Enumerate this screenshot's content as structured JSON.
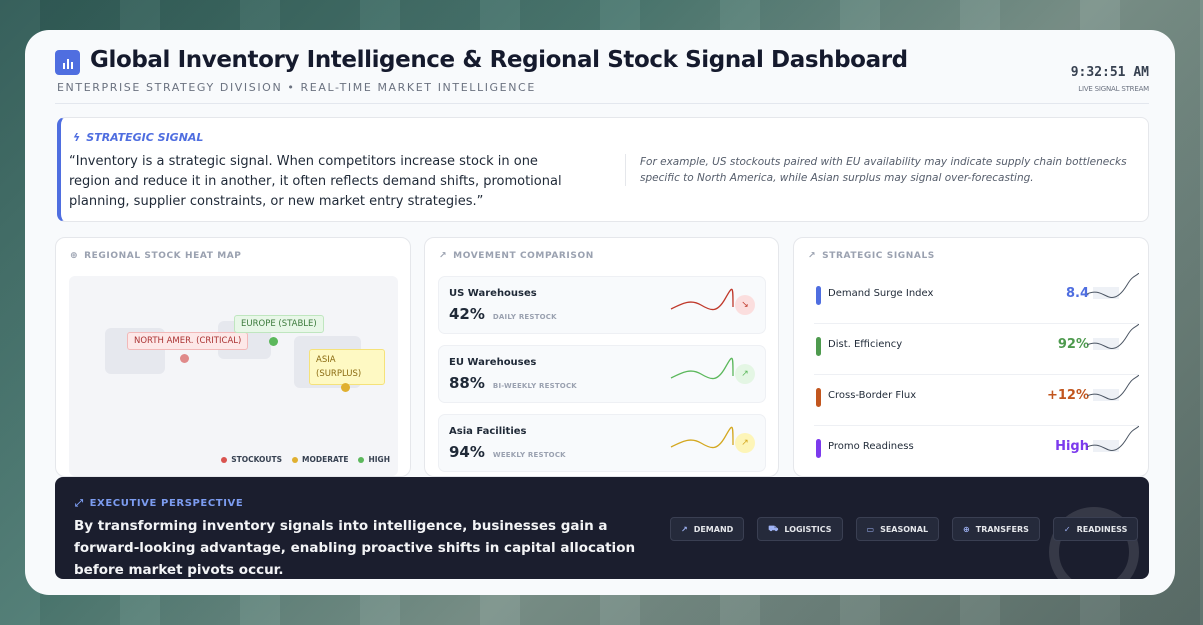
{
  "header": {
    "title": "Global Inventory Intelligence & Regional Stock Signal Dashboard",
    "subtitle": "ENTERPRISE STRATEGY DIVISION • REAL-TIME MARKET INTELLIGENCE",
    "clock": "9:32:51 AM",
    "live_label": "LIVE SIGNAL STREAM",
    "accent": "#4f6ee0"
  },
  "signal": {
    "heading": "STRATEGIC SIGNAL",
    "quote": "“Inventory is a strategic signal. When competitors increase stock in one region and reduce it in another, it often reflects demand shifts, promotional planning, supplier constraints, or new market entry strategies.”",
    "example": "For example, US stockouts paired with EU availability may indicate supply chain bottlenecks specific to North America, while Asian surplus may signal over-forecasting."
  },
  "heatmap": {
    "title": "REGIONAL STOCK HEAT MAP",
    "regions": [
      {
        "label": "NORTH AMER. (CRITICAL)",
        "status": "stockouts"
      },
      {
        "label": "EUROPE (STABLE)",
        "status": "high"
      },
      {
        "label": "ASIA (SURPLUS)",
        "status": "moderate"
      }
    ],
    "legend": [
      "STOCKOUTS",
      "MODERATE",
      "HIGH"
    ],
    "colors": {
      "stockouts": "#d9534f",
      "moderate": "#e0b030",
      "high": "#5cb85c"
    }
  },
  "movement": {
    "title": "MOVEMENT COMPARISON",
    "rows": [
      {
        "name": "US Warehouses",
        "value": "42%",
        "cadence": "DAILY RESTOCK",
        "trend": "down",
        "color": "#c0392b"
      },
      {
        "name": "EU Warehouses",
        "value": "88%",
        "cadence": "BI-WEEKLY RESTOCK",
        "trend": "up",
        "color": "#5cb85c"
      },
      {
        "name": "Asia Facilities",
        "value": "94%",
        "cadence": "WEEKLY RESTOCK",
        "trend": "up",
        "color": "#d4a820"
      }
    ]
  },
  "signals": {
    "title": "STRATEGIC SIGNALS",
    "rows": [
      {
        "name": "Demand Surge Index",
        "value": "8.4",
        "color": "#4f6ee0"
      },
      {
        "name": "Dist. Efficiency",
        "value": "92%",
        "color": "#4e9a4e"
      },
      {
        "name": "Cross-Border Flux",
        "value": "+12%",
        "color": "#c2561e"
      },
      {
        "name": "Promo Readiness",
        "value": "High",
        "color": "#7c3aed"
      }
    ]
  },
  "executive": {
    "heading": "EXECUTIVE PERSPECTIVE",
    "text": "By transforming inventory signals into intelligence, businesses gain a forward-looking advantage, enabling proactive shifts in capital allocation before market pivots occur.",
    "chips": [
      {
        "label": "DEMAND",
        "icon": "trend-up-icon"
      },
      {
        "label": "LOGISTICS",
        "icon": "truck-icon"
      },
      {
        "label": "SEASONAL",
        "icon": "calendar-icon"
      },
      {
        "label": "TRANSFERS",
        "icon": "globe-icon"
      },
      {
        "label": "READINESS",
        "icon": "check-circle-icon"
      }
    ]
  }
}
